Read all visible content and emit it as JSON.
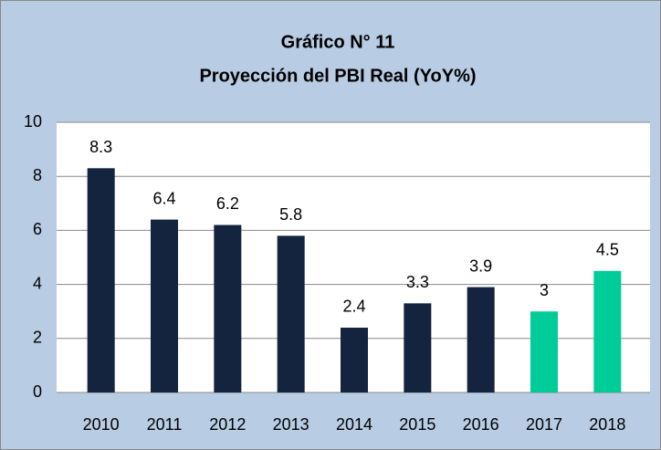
{
  "chart_data": {
    "type": "bar",
    "title": [
      "Gráfico N° 11",
      "Proyección del PBI Real (YoY%)"
    ],
    "categories": [
      "2010",
      "2011",
      "2012",
      "2013",
      "2014",
      "2015",
      "2016",
      "2017",
      "2018"
    ],
    "values": [
      8.3,
      6.4,
      6.2,
      5.8,
      2.4,
      3.3,
      3.9,
      3,
      4.5
    ],
    "colors": [
      "#14243e",
      "#14243e",
      "#14243e",
      "#14243e",
      "#14243e",
      "#14243e",
      "#14243e",
      "#00cc99",
      "#00cc99"
    ],
    "ylim": [
      0,
      10
    ],
    "yticks": [
      0,
      2,
      4,
      6,
      8,
      10
    ],
    "grid": true
  }
}
